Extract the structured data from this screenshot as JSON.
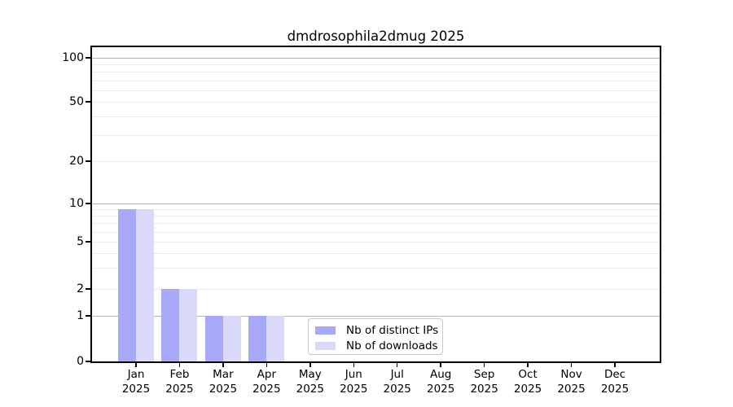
{
  "chart_data": {
    "type": "bar",
    "title": "dmdrosophila2dmug 2025",
    "categories": [
      {
        "month": "Jan",
        "year": "2025"
      },
      {
        "month": "Feb",
        "year": "2025"
      },
      {
        "month": "Mar",
        "year": "2025"
      },
      {
        "month": "Apr",
        "year": "2025"
      },
      {
        "month": "May",
        "year": "2025"
      },
      {
        "month": "Jun",
        "year": "2025"
      },
      {
        "month": "Jul",
        "year": "2025"
      },
      {
        "month": "Aug",
        "year": "2025"
      },
      {
        "month": "Sep",
        "year": "2025"
      },
      {
        "month": "Oct",
        "year": "2025"
      },
      {
        "month": "Nov",
        "year": "2025"
      },
      {
        "month": "Dec",
        "year": "2025"
      }
    ],
    "series": [
      {
        "name": "Nb of distinct IPs",
        "color": "#a9a9fa",
        "values": [
          9,
          2,
          1,
          1,
          0,
          0,
          0,
          0,
          0,
          0,
          0,
          0
        ]
      },
      {
        "name": "Nb of downloads",
        "color": "#d9d9fa",
        "values": [
          9,
          2,
          1,
          1,
          0,
          0,
          0,
          0,
          0,
          0,
          0,
          0
        ]
      }
    ],
    "yticks": [
      0,
      1,
      2,
      5,
      10,
      20,
      50,
      100
    ],
    "y_major_gridlines": [
      1,
      10,
      100
    ],
    "y_minor_gridlines": [
      2,
      3,
      4,
      5,
      6,
      7,
      8,
      9,
      20,
      30,
      40,
      50,
      60,
      70,
      80,
      90
    ],
    "ylim": [
      0,
      120
    ],
    "yscale": "symlog",
    "grid": "horizontal",
    "legend_position": "inside-bottom-center",
    "colors": {
      "bar_distinct_ips": "#a9a9fa",
      "bar_downloads": "#d9d9fa",
      "major_grid": "#b3b3b3",
      "minor_grid": "#ececec",
      "axis": "#000000",
      "legend_border": "#c9c9c9",
      "background": "#ffffff"
    }
  }
}
